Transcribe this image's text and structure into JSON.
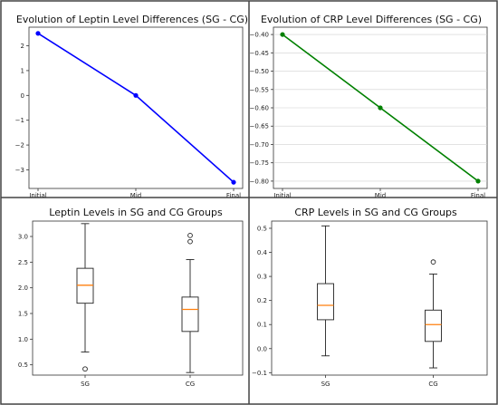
{
  "chart_data": [
    {
      "type": "line",
      "title": "Evolution of Leptin Level Differences (SG - CG)",
      "x": [
        "Initial",
        "Mid",
        "Final"
      ],
      "series": [
        {
          "values": [
            2.5,
            0.0,
            -3.5
          ]
        }
      ],
      "color": "#0000ff",
      "ylim": [
        -3.75,
        2.75
      ],
      "yticks": [
        -3,
        -2,
        -1,
        0,
        1,
        2
      ],
      "ytick_labels": [
        "−3",
        "−2",
        "−1",
        "0",
        "1",
        "2"
      ],
      "grid": false
    },
    {
      "type": "line",
      "title": "Evolution of CRP Level Differences (SG - CG)",
      "x": [
        "Initial",
        "Mid",
        "Final"
      ],
      "series": [
        {
          "values": [
            -0.4,
            -0.6,
            -0.8
          ]
        }
      ],
      "color": "#008000",
      "ylim": [
        -0.82,
        -0.38
      ],
      "yticks": [
        -0.8,
        -0.75,
        -0.7,
        -0.65,
        -0.6,
        -0.55,
        -0.5,
        -0.45,
        -0.4
      ],
      "ytick_labels": [
        "−0.80",
        "−0.75",
        "−0.70",
        "−0.65",
        "−0.60",
        "−0.55",
        "−0.50",
        "−0.45",
        "−0.40"
      ],
      "grid": true
    },
    {
      "type": "box",
      "title": "Leptin Levels in SG and CG Groups",
      "categories": [
        "SG",
        "CG"
      ],
      "boxes": [
        {
          "whisker_low": 0.75,
          "q1": 1.7,
          "median": 2.05,
          "q3": 2.38,
          "whisker_high": 3.25,
          "outliers": [
            0.42
          ]
        },
        {
          "whisker_low": 0.35,
          "q1": 1.15,
          "median": 1.58,
          "q3": 1.82,
          "whisker_high": 2.55,
          "outliers": [
            2.9,
            3.02
          ]
        }
      ],
      "ylim": [
        0.3,
        3.3
      ],
      "yticks": [
        0.5,
        1.0,
        1.5,
        2.0,
        2.5,
        3.0
      ],
      "ytick_labels": [
        "0.5",
        "1.0",
        "1.5",
        "2.0",
        "2.5",
        "3.0"
      ],
      "median_color": "#ff7f0e",
      "grid": false
    },
    {
      "type": "box",
      "title": "CRP Levels in SG and CG Groups",
      "categories": [
        "SG",
        "CG"
      ],
      "boxes": [
        {
          "whisker_low": -0.03,
          "q1": 0.12,
          "median": 0.18,
          "q3": 0.27,
          "whisker_high": 0.51,
          "outliers": []
        },
        {
          "whisker_low": -0.08,
          "q1": 0.03,
          "median": 0.1,
          "q3": 0.16,
          "whisker_high": 0.31,
          "outliers": [
            0.36
          ]
        }
      ],
      "ylim": [
        -0.11,
        0.53
      ],
      "yticks": [
        -0.1,
        0.0,
        0.1,
        0.2,
        0.3,
        0.4,
        0.5
      ],
      "ytick_labels": [
        "−0.1",
        "0.0",
        "0.1",
        "0.2",
        "0.3",
        "0.4",
        "0.5"
      ],
      "median_color": "#ff7f0e",
      "grid": false
    }
  ]
}
